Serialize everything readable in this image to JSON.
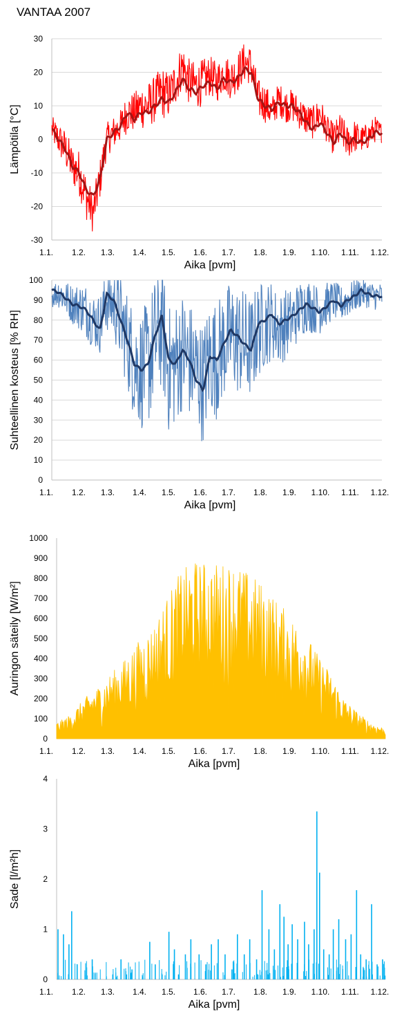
{
  "page": {
    "title": "VANTAA 2007"
  },
  "x_ticks": [
    "1.1.",
    "1.2.",
    "1.3.",
    "1.4.",
    "1.5.",
    "1.6.",
    "1.7.",
    "1.8.",
    "1.9.",
    "1.10.",
    "1.11.",
    "1.12."
  ],
  "chart_data": [
    {
      "type": "line",
      "title": "",
      "xlabel": "Aika [pvm]",
      "ylabel": "Lämpötila [°C]",
      "ylim": [
        -30,
        30
      ],
      "yticks": [
        -30,
        -20,
        -10,
        0,
        10,
        20,
        30
      ],
      "grid": true,
      "x_unit": "month",
      "series": [
        {
          "color": "#ff0000",
          "style": "raw",
          "x": [
            0,
            0.25,
            0.5,
            0.75,
            1,
            1.25,
            1.5,
            1.75,
            2,
            2.25,
            2.5,
            2.75,
            3,
            3.25,
            3.5,
            3.75,
            4,
            4.25,
            4.5,
            4.75,
            5,
            5.25,
            5.5,
            5.75,
            6,
            6.25,
            6.5,
            6.75,
            7,
            7.25,
            7.5,
            7.75,
            8,
            8.25,
            8.5,
            8.75,
            9,
            9.25,
            9.5,
            9.75,
            10,
            10.25,
            10.5,
            10.75,
            11,
            11.25,
            11.5,
            11.75,
            12
          ],
          "y": [
            3,
            0,
            -3,
            -8,
            -10,
            -17,
            -22,
            -12,
            0,
            2,
            4,
            8,
            8,
            10,
            10,
            12,
            14,
            13,
            17,
            22,
            17,
            16,
            17,
            19,
            17,
            20,
            18,
            20,
            23,
            22,
            12,
            11,
            8,
            12,
            10,
            10,
            8,
            6,
            5,
            8,
            3,
            0,
            3,
            -1,
            1,
            0,
            1,
            3,
            2
          ],
          "amp": [
            4,
            5,
            6,
            6,
            7,
            7,
            6,
            6,
            5,
            5,
            5,
            6,
            6,
            7,
            7,
            7,
            8,
            7,
            7,
            7,
            7,
            7,
            7,
            6,
            6,
            6,
            6,
            6,
            6,
            6,
            6,
            6,
            5,
            5,
            5,
            5,
            5,
            5,
            5,
            5,
            4,
            5,
            5,
            5,
            5,
            4,
            4,
            4,
            3
          ]
        },
        {
          "color": "#a31515",
          "style": "smooth",
          "x": [
            0,
            0.25,
            0.5,
            0.75,
            1,
            1.25,
            1.5,
            1.75,
            2,
            2.25,
            2.5,
            2.75,
            3,
            3.25,
            3.5,
            3.75,
            4,
            4.25,
            4.5,
            4.75,
            5,
            5.25,
            5.5,
            5.75,
            6,
            6.25,
            6.5,
            6.75,
            7,
            7.25,
            7.5,
            7.75,
            8,
            8.25,
            8.5,
            8.75,
            9,
            9.25,
            9.5,
            9.75,
            10,
            10.25,
            10.5,
            10.75,
            11,
            11.25,
            11.5,
            11.75,
            12
          ],
          "y": [
            3,
            0,
            -3,
            -8,
            -10,
            -15,
            -17,
            -12,
            0,
            2,
            4,
            8,
            6,
            8,
            8,
            10,
            12,
            11,
            14,
            18,
            15,
            14,
            16,
            17,
            15,
            18,
            17,
            18,
            21,
            20,
            12,
            10,
            9,
            11,
            10,
            10,
            8,
            5,
            3,
            5,
            2,
            -1,
            2,
            -1,
            0,
            -1,
            0,
            2,
            2
          ]
        }
      ]
    },
    {
      "type": "line",
      "title": "",
      "xlabel": "Aika [pvm]",
      "ylabel": "Suhteellinen kosteus [% RH]",
      "ylim": [
        0,
        100
      ],
      "yticks": [
        0,
        10,
        20,
        30,
        40,
        50,
        60,
        70,
        80,
        90,
        100
      ],
      "grid": true,
      "x_unit": "month",
      "series": [
        {
          "color": "#4f81bd",
          "style": "raw",
          "x": [
            0,
            0.25,
            0.5,
            0.75,
            1,
            1.25,
            1.5,
            1.75,
            2,
            2.25,
            2.5,
            2.75,
            3,
            3.25,
            3.5,
            3.75,
            4,
            4.25,
            4.5,
            4.75,
            5,
            5.25,
            5.5,
            5.75,
            6,
            6.25,
            6.5,
            6.75,
            7,
            7.25,
            7.5,
            7.75,
            8,
            8.25,
            8.5,
            8.75,
            9,
            9.25,
            9.5,
            9.75,
            10,
            10.25,
            10.5,
            10.75,
            11,
            11.25,
            11.5,
            11.75,
            12
          ],
          "y": [
            92,
            94,
            91,
            88,
            87,
            85,
            80,
            78,
            90,
            88,
            80,
            70,
            58,
            55,
            58,
            70,
            78,
            55,
            58,
            65,
            60,
            55,
            48,
            62,
            60,
            68,
            72,
            70,
            68,
            66,
            75,
            78,
            80,
            75,
            78,
            80,
            85,
            88,
            86,
            85,
            88,
            90,
            88,
            90,
            92,
            94,
            93,
            92,
            92
          ],
          "amp": [
            6,
            8,
            9,
            10,
            12,
            14,
            14,
            15,
            16,
            18,
            22,
            25,
            28,
            30,
            32,
            32,
            32,
            32,
            32,
            30,
            30,
            30,
            30,
            30,
            30,
            28,
            28,
            28,
            28,
            26,
            24,
            22,
            20,
            18,
            18,
            16,
            15,
            14,
            13,
            12,
            11,
            10,
            9,
            9,
            8,
            8,
            7,
            7,
            7
          ]
        },
        {
          "color": "#1f3864",
          "style": "smooth",
          "x": [
            0,
            0.25,
            0.5,
            0.75,
            1,
            1.25,
            1.5,
            1.75,
            2,
            2.25,
            2.5,
            2.75,
            3,
            3.25,
            3.5,
            3.75,
            4,
            4.25,
            4.5,
            4.75,
            5,
            5.25,
            5.5,
            5.75,
            6,
            6.25,
            6.5,
            6.75,
            7,
            7.25,
            7.5,
            7.75,
            8,
            8.25,
            8.5,
            8.75,
            9,
            9.25,
            9.5,
            9.75,
            10,
            10.25,
            10.5,
            10.75,
            11,
            11.25,
            11.5,
            11.75,
            12
          ],
          "y": [
            95,
            94,
            91,
            88,
            87,
            85,
            80,
            75,
            93,
            90,
            80,
            70,
            58,
            55,
            58,
            72,
            82,
            60,
            58,
            65,
            60,
            50,
            45,
            62,
            60,
            68,
            75,
            72,
            68,
            65,
            78,
            80,
            83,
            78,
            80,
            82,
            85,
            88,
            86,
            84,
            87,
            90,
            87,
            90,
            92,
            95,
            93,
            92,
            92
          ]
        }
      ]
    },
    {
      "type": "area",
      "title": "",
      "xlabel": "Aika [pvm]",
      "ylabel": "Auringon säteily [W/m²]",
      "ylim": [
        0,
        1000
      ],
      "yticks": [
        0,
        100,
        200,
        300,
        400,
        500,
        600,
        700,
        800,
        900,
        1000
      ],
      "grid": false,
      "x_unit": "month",
      "series": [
        {
          "color": "#ffc000",
          "style": "envelope",
          "x": [
            0,
            0.5,
            1,
            1.5,
            2,
            2.5,
            3,
            3.5,
            4,
            4.5,
            5,
            5.5,
            6,
            6.5,
            7,
            7.5,
            8,
            8.5,
            9,
            9.5,
            10,
            10.5,
            11,
            11.5,
            12
          ],
          "y": [
            80,
            120,
            200,
            260,
            330,
            400,
            490,
            560,
            700,
            830,
            890,
            880,
            880,
            880,
            830,
            780,
            700,
            620,
            550,
            430,
            330,
            200,
            130,
            80,
            50
          ]
        }
      ]
    },
    {
      "type": "bar",
      "title": "",
      "xlabel": "Aika [pvm]",
      "ylabel": "Sade [l/m²h]",
      "ylim": [
        0,
        4
      ],
      "yticks": [
        0,
        1,
        2,
        3,
        4
      ],
      "grid": false,
      "x_unit": "month",
      "series": [
        {
          "color": "#00b0f0",
          "x": [
            0.05,
            0.25,
            0.45,
            0.55,
            0.75,
            1.3,
            2.05,
            2.35,
            2.55,
            2.75,
            3.4,
            3.6,
            3.85,
            4.1,
            4.3,
            4.45,
            4.7,
            4.9,
            5.2,
            5.45,
            5.65,
            5.9,
            6.15,
            6.4,
            6.6,
            6.85,
            7.05,
            7.3,
            7.5,
            7.75,
            7.95,
            8.15,
            8.3,
            8.45,
            8.6,
            8.8,
            9.05,
            9.2,
            9.4,
            9.5,
            9.6,
            9.75,
            9.95,
            10.1,
            10.3,
            10.55,
            10.75,
            10.95,
            11.1,
            11.3,
            11.5,
            11.7,
            11.9
          ],
          "y": [
            1.0,
            0.9,
            0.7,
            1.36,
            0.3,
            0.4,
            0.1,
            0.4,
            0.1,
            0.2,
            0.75,
            0.3,
            0.1,
            0.95,
            0.6,
            0.1,
            0.5,
            0.8,
            0.5,
            0.3,
            0.7,
            0.8,
            0.5,
            0.2,
            0.9,
            0.5,
            0.8,
            0.4,
            1.78,
            1.0,
            0.6,
            1.5,
            1.25,
            0.7,
            1.1,
            0.8,
            1.15,
            0.7,
            1.0,
            3.35,
            2.13,
            0.6,
            0.5,
            1.0,
            1.2,
            0.8,
            0.9,
            1.78,
            0.5,
            0.4,
            1.5,
            0.3,
            0.4
          ]
        }
      ]
    }
  ]
}
